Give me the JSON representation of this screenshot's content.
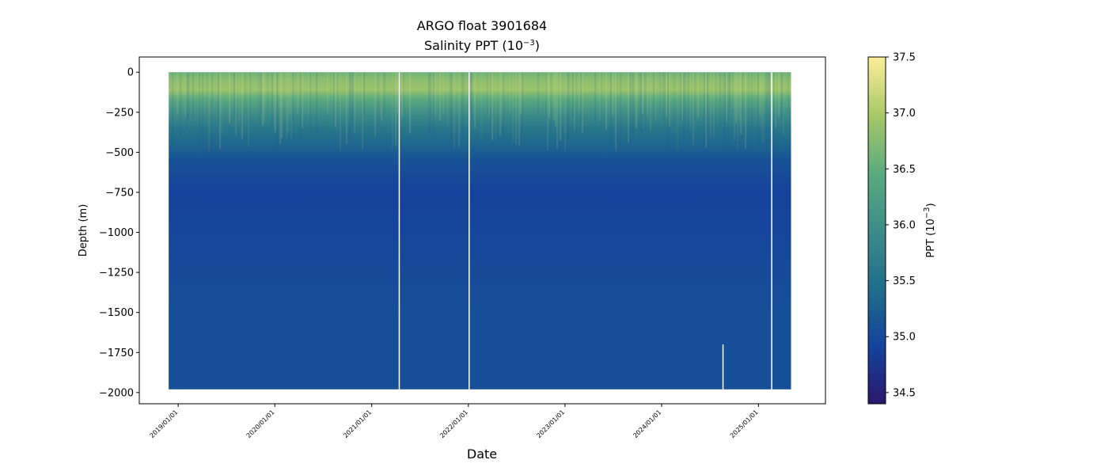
{
  "chart_data": {
    "type": "heatmap",
    "title": "ARGO float 3901684",
    "subtitle_base": "Salinity PPT (10",
    "subtitle_exp": "−3",
    "subtitle_end": ")",
    "xlabel": "Date",
    "ylabel": "Depth (m)",
    "colorbar_label_base": "PPT (10",
    "colorbar_label_exp": "−3",
    "colorbar_label_end": ")",
    "colormap": "haline",
    "colormap_stops": [
      "#2a186c",
      "#14439c",
      "#206e8b",
      "#3d8c89",
      "#5aab7e",
      "#a9c867",
      "#fdef9a"
    ],
    "clim": [
      34.4,
      37.5
    ],
    "colorbar_ticks": [
      34.5,
      35.0,
      35.5,
      36.0,
      36.5,
      37.0,
      37.5
    ],
    "colorbar_tick_labels": [
      "34.5",
      "35.0",
      "35.5",
      "36.0",
      "36.5",
      "37.0",
      "37.5"
    ],
    "xlim": [
      "2018-08-07",
      "2025-09-11"
    ],
    "ylim": [
      -2070,
      95
    ],
    "x_ticks": [
      "2019-01-01",
      "2020-01-01",
      "2021-01-01",
      "2022-01-01",
      "2023-01-01",
      "2024-01-01",
      "2025-01-01"
    ],
    "x_tick_labels": [
      "2019/01/01",
      "2020/01/01",
      "2021/01/01",
      "2022/01/01",
      "2023/01/01",
      "2024/01/01",
      "2025/01/01"
    ],
    "y_ticks": [
      0,
      -250,
      -500,
      -750,
      -1000,
      -1250,
      -1500,
      -1750,
      -2000
    ],
    "y_tick_labels": [
      "0",
      "−250",
      "−500",
      "−750",
      "−1000",
      "−1250",
      "−1500",
      "−1750",
      "−2000"
    ],
    "data_range": [
      "2018-11-26",
      "2025-05-04"
    ],
    "max_depth": -1980,
    "gaps": [
      {
        "date": "2021-04-15",
        "from_depth": 0,
        "to_depth": -1985
      },
      {
        "date": "2022-01-04",
        "from_depth": 0,
        "to_depth": -1985
      },
      {
        "date": "2024-08-20",
        "from_depth": -1700,
        "to_depth": -1985
      },
      {
        "date": "2025-02-20",
        "from_depth": 0,
        "to_depth": -1985
      }
    ],
    "profile": [
      {
        "depth": 0,
        "salinity": 36.6
      },
      {
        "depth": -50,
        "salinity": 36.8
      },
      {
        "depth": -110,
        "salinity": 36.9
      },
      {
        "depth": -160,
        "salinity": 36.5
      },
      {
        "depth": -250,
        "salinity": 36.0
      },
      {
        "depth": -350,
        "salinity": 35.6
      },
      {
        "depth": -450,
        "salinity": 35.35
      },
      {
        "depth": -550,
        "salinity": 35.1
      },
      {
        "depth": -750,
        "salinity": 34.9
      },
      {
        "depth": -1000,
        "salinity": 34.95
      },
      {
        "depth": -1250,
        "salinity": 35.0
      },
      {
        "depth": -1500,
        "salinity": 35.05
      },
      {
        "depth": -2000,
        "salinity": 35.05
      }
    ]
  }
}
